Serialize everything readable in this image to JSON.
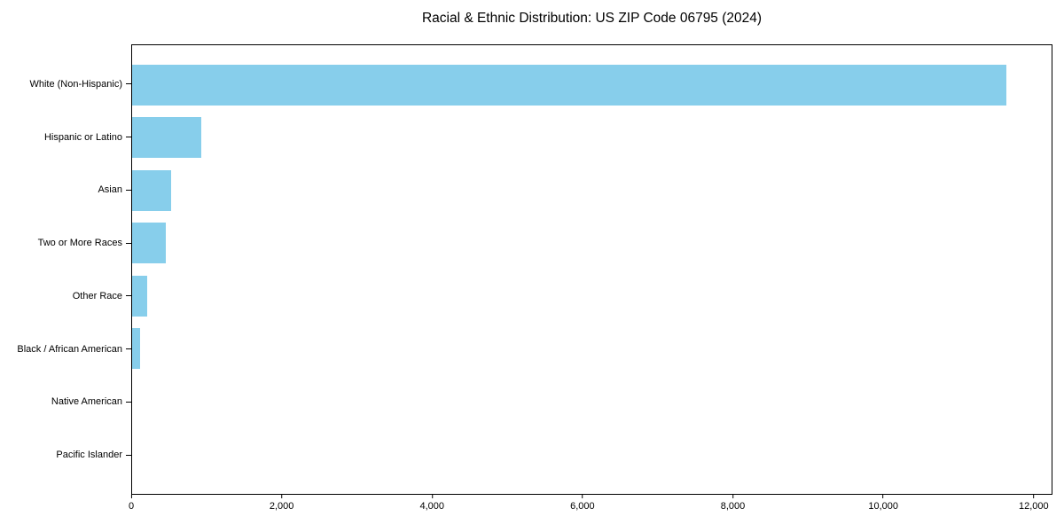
{
  "title": "Racial & Ethnic Distribution: US ZIP Code 06795 (2024)",
  "colors": {
    "bar": "#87CEEB",
    "axis": "#000000",
    "text": "#000000",
    "background": "#ffffff"
  },
  "chart_data": {
    "type": "bar",
    "orientation": "horizontal",
    "title": "Racial & Ethnic Distribution: US ZIP Code 06795 (2024)",
    "categories": [
      "White (Non-Hispanic)",
      "Hispanic or Latino",
      "Asian",
      "Two or More Races",
      "Other Race",
      "Black / African American",
      "Native American",
      "Pacific Islander"
    ],
    "values": [
      11650,
      925,
      520,
      450,
      195,
      110,
      0,
      0
    ],
    "xlabel": "",
    "ylabel": "",
    "xlim": [
      0,
      12250
    ],
    "xticks": [
      0,
      2000,
      4000,
      6000,
      8000,
      10000,
      12000
    ],
    "grid": false,
    "legend_position": "none",
    "bar_color": "#87CEEB"
  }
}
